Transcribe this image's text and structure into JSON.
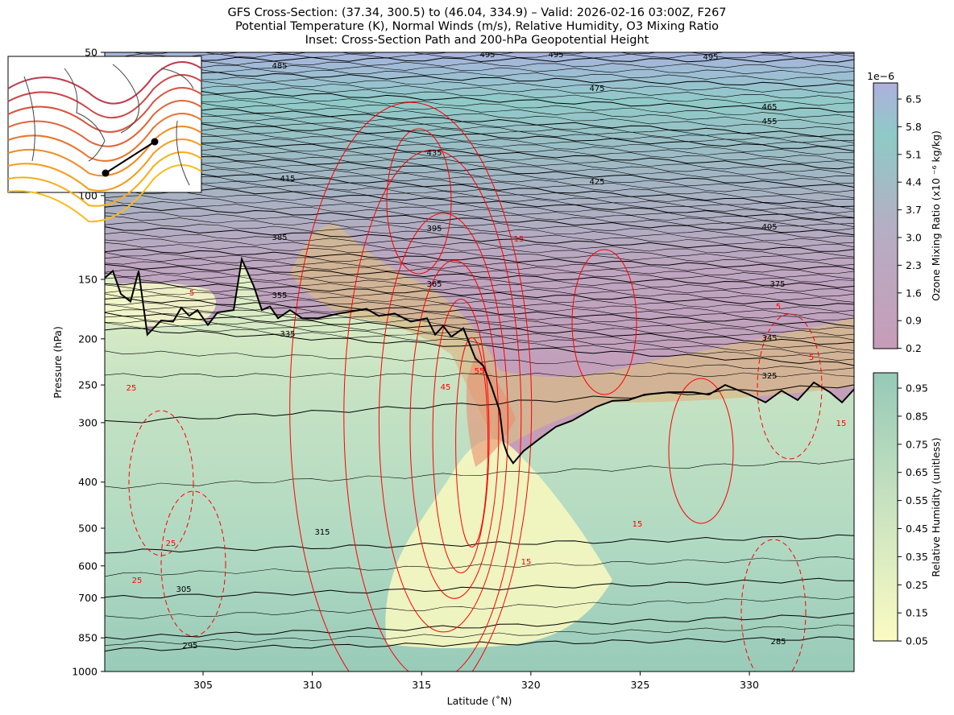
{
  "title_lines": [
    "GFS Cross-Section: (37.34, 300.5) to (46.04, 334.9) – Valid: 2026-02-16 03:00Z, F267",
    "Potential Temperature (K), Normal Winds (m/s), Relative Humidity, O3 Mixing Ratio",
    "Inset: Cross-Section Path and 200-hPa Geopotential Height"
  ],
  "chart_data": {
    "type": "contour",
    "xlabel": "Latitude (˚N)",
    "ylabel": "Pressure (hPa)",
    "xlim": [
      300.5,
      334.9
    ],
    "ylim": [
      1000,
      50
    ],
    "y_scale": "log",
    "x_ticks": [
      "305",
      "310",
      "315",
      "320",
      "325",
      "330"
    ],
    "y_ticks": [
      "50",
      "100",
      "150",
      "200",
      "250",
      "300",
      "400",
      "500",
      "600",
      "700",
      "850",
      "1000"
    ],
    "theta_contour_labels": [
      "485",
      "495",
      "495",
      "495",
      "475",
      "465",
      "455",
      "435",
      "425",
      "415",
      "405",
      "395",
      "385",
      "375",
      "365",
      "355",
      "345",
      "335",
      "325",
      "315",
      "305",
      "295",
      "285"
    ],
    "theta_profile": {
      "left": [
        [
          285,
          900
        ],
        [
          295,
          850
        ],
        [
          305,
          700
        ],
        [
          315,
          560
        ],
        [
          325,
          300
        ],
        [
          335,
          190
        ],
        [
          355,
          165
        ],
        [
          385,
          130
        ],
        [
          415,
          95
        ],
        [
          455,
          70
        ],
        [
          485,
          55
        ],
        [
          500,
          50
        ]
      ],
      "right": [
        [
          285,
          850
        ],
        [
          295,
          760
        ],
        [
          305,
          640
        ],
        [
          315,
          520
        ],
        [
          325,
          250
        ],
        [
          345,
          205
        ],
        [
          375,
          155
        ],
        [
          405,
          120
        ],
        [
          425,
          105
        ],
        [
          455,
          80
        ],
        [
          465,
          75
        ],
        [
          495,
          52
        ],
        [
          500,
          50
        ]
      ]
    },
    "wind_contour_labels": [
      "5",
      "5",
      "15",
      "5",
      "55",
      "45",
      "25",
      "25",
      "25",
      "15",
      "15",
      "15"
    ],
    "tropopause": [
      [
        300.5,
        149
      ],
      [
        300.87,
        144
      ],
      [
        301.24,
        161
      ],
      [
        301.68,
        167
      ],
      [
        302.05,
        144
      ],
      [
        302.45,
        196
      ],
      [
        303.08,
        183
      ],
      [
        303.63,
        184
      ],
      [
        304.0,
        172
      ],
      [
        304.37,
        179
      ],
      [
        304.74,
        174
      ],
      [
        305.22,
        187
      ],
      [
        305.66,
        176
      ],
      [
        306.4,
        174
      ],
      [
        306.77,
        136
      ],
      [
        307.32,
        155
      ],
      [
        307.69,
        174
      ],
      [
        308.06,
        171
      ],
      [
        308.43,
        181
      ],
      [
        308.98,
        174
      ],
      [
        309.53,
        181
      ],
      [
        310.27,
        181
      ],
      [
        311.19,
        177
      ],
      [
        312.48,
        173
      ],
      [
        313.04,
        179
      ],
      [
        313.77,
        177
      ],
      [
        314.51,
        184
      ],
      [
        315.25,
        181
      ],
      [
        315.62,
        196
      ],
      [
        315.99,
        188
      ],
      [
        316.36,
        198
      ],
      [
        316.91,
        190
      ],
      [
        317.46,
        220
      ],
      [
        317.83,
        228
      ],
      [
        318.2,
        252
      ],
      [
        318.57,
        283
      ],
      [
        318.75,
        331
      ],
      [
        318.94,
        351
      ],
      [
        319.19,
        365
      ],
      [
        319.67,
        344
      ],
      [
        320.41,
        324
      ],
      [
        321.15,
        306
      ],
      [
        321.89,
        297
      ],
      [
        322.99,
        278
      ],
      [
        323.73,
        270
      ],
      [
        324.47,
        269
      ],
      [
        325.2,
        262
      ],
      [
        326.31,
        259
      ],
      [
        327.42,
        259
      ],
      [
        328.15,
        262
      ],
      [
        328.89,
        250
      ],
      [
        330.0,
        262
      ],
      [
        330.74,
        272
      ],
      [
        331.47,
        257
      ],
      [
        332.21,
        269
      ],
      [
        332.95,
        247
      ],
      [
        333.69,
        259
      ],
      [
        334.24,
        272
      ],
      [
        334.8,
        255
      ]
    ],
    "ozone_colorbar": {
      "label": "Ozone Mixing Ratio (x10 ⁻⁶ kg/kg)",
      "exponent": "1e−6",
      "ticks": [
        "6.5",
        "5.8",
        "5.1",
        "4.4",
        "3.7",
        "3.0",
        "2.3",
        "1.6",
        "0.9",
        "0.2"
      ],
      "colors": [
        "#aeb0de",
        "#8ecac6",
        "#c79cb8"
      ]
    },
    "rh_colorbar": {
      "label": "Relative Humidity (unitless)",
      "ticks": [
        "0.95",
        "0.85",
        "0.75",
        "0.65",
        "0.55",
        "0.45",
        "0.35",
        "0.25",
        "0.15",
        "0.05"
      ],
      "colors": [
        "#96c9b8",
        "#c9e3c0",
        "#fbfbc2"
      ]
    },
    "wind_color": "#ff0000",
    "theta_color": "#000000"
  }
}
